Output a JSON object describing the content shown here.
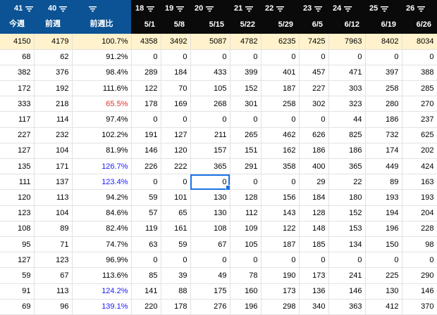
{
  "columns": [
    {
      "num": "41",
      "label": "今週",
      "bg": "blue",
      "width": 48
    },
    {
      "num": "40",
      "label": "前週",
      "bg": "blue",
      "width": 54
    },
    {
      "num": "",
      "label": "前週比",
      "bg": "blue",
      "width": 84
    },
    {
      "num": "18",
      "label": "5/1",
      "bg": "black",
      "width": 42
    },
    {
      "num": "19",
      "label": "5/8",
      "bg": "black",
      "width": 42
    },
    {
      "num": "20",
      "label": "5/15",
      "bg": "black",
      "width": 56
    },
    {
      "num": "21",
      "label": "5/22",
      "bg": "black",
      "width": 44
    },
    {
      "num": "22",
      "label": "5/29",
      "bg": "black",
      "width": 54
    },
    {
      "num": "23",
      "label": "6/5",
      "bg": "black",
      "width": 42
    },
    {
      "num": "24",
      "label": "6/12",
      "bg": "black",
      "width": 52
    },
    {
      "num": "25",
      "label": "6/19",
      "bg": "black",
      "width": 52
    },
    {
      "num": "26",
      "label": "6/26",
      "bg": "black",
      "width": 50
    }
  ],
  "summary": [
    "4150",
    "4179",
    "100.7%",
    "4358",
    "3492",
    "5087",
    "4782",
    "6235",
    "7425",
    "7963",
    "8402",
    "8034"
  ],
  "rows": [
    [
      "68",
      "62",
      "91.2%",
      "0",
      "0",
      "0",
      "0",
      "0",
      "0",
      "0",
      "0",
      "0"
    ],
    [
      "382",
      "376",
      "98.4%",
      "289",
      "184",
      "433",
      "399",
      "401",
      "457",
      "471",
      "397",
      "388"
    ],
    [
      "172",
      "192",
      "111.6%",
      "122",
      "70",
      "105",
      "152",
      "187",
      "227",
      "303",
      "258",
      "285"
    ],
    [
      "333",
      "218",
      "65.5%",
      "178",
      "169",
      "268",
      "301",
      "258",
      "302",
      "323",
      "280",
      "270"
    ],
    [
      "117",
      "114",
      "97.4%",
      "0",
      "0",
      "0",
      "0",
      "0",
      "0",
      "44",
      "186",
      "237"
    ],
    [
      "227",
      "232",
      "102.2%",
      "191",
      "127",
      "211",
      "265",
      "462",
      "626",
      "825",
      "732",
      "625"
    ],
    [
      "127",
      "104",
      "81.9%",
      "146",
      "120",
      "157",
      "151",
      "162",
      "186",
      "186",
      "174",
      "202"
    ],
    [
      "135",
      "171",
      "126.7%",
      "226",
      "222",
      "365",
      "291",
      "358",
      "400",
      "365",
      "449",
      "424"
    ],
    [
      "111",
      "137",
      "123.4%",
      "0",
      "0",
      "0",
      "0",
      "0",
      "29",
      "22",
      "89",
      "163"
    ],
    [
      "120",
      "113",
      "94.2%",
      "59",
      "101",
      "130",
      "128",
      "156",
      "184",
      "180",
      "193",
      "193"
    ],
    [
      "123",
      "104",
      "84.6%",
      "57",
      "65",
      "130",
      "112",
      "143",
      "128",
      "152",
      "194",
      "204"
    ],
    [
      "108",
      "89",
      "82.4%",
      "119",
      "161",
      "108",
      "109",
      "122",
      "148",
      "153",
      "196",
      "228"
    ],
    [
      "95",
      "71",
      "74.7%",
      "63",
      "59",
      "67",
      "105",
      "187",
      "185",
      "134",
      "150",
      "98"
    ],
    [
      "127",
      "123",
      "96.9%",
      "0",
      "0",
      "0",
      "0",
      "0",
      "0",
      "0",
      "0",
      "0"
    ],
    [
      "59",
      "67",
      "113.6%",
      "85",
      "39",
      "49",
      "78",
      "190",
      "173",
      "241",
      "225",
      "290"
    ],
    [
      "91",
      "113",
      "124.2%",
      "141",
      "88",
      "175",
      "160",
      "173",
      "136",
      "146",
      "130",
      "146"
    ],
    [
      "69",
      "96",
      "139.1%",
      "220",
      "178",
      "276",
      "196",
      "298",
      "340",
      "363",
      "412",
      "370"
    ]
  ],
  "ratio_colors": {
    "low": "#e03030",
    "high": "#1a1aff"
  },
  "highlight": {
    "red_rows": [
      3
    ],
    "blue_rows": [
      7,
      8,
      15,
      16
    ]
  },
  "selected_cell": {
    "row": 8,
    "col": 5
  },
  "icons": {
    "filter": "filter-icon"
  }
}
